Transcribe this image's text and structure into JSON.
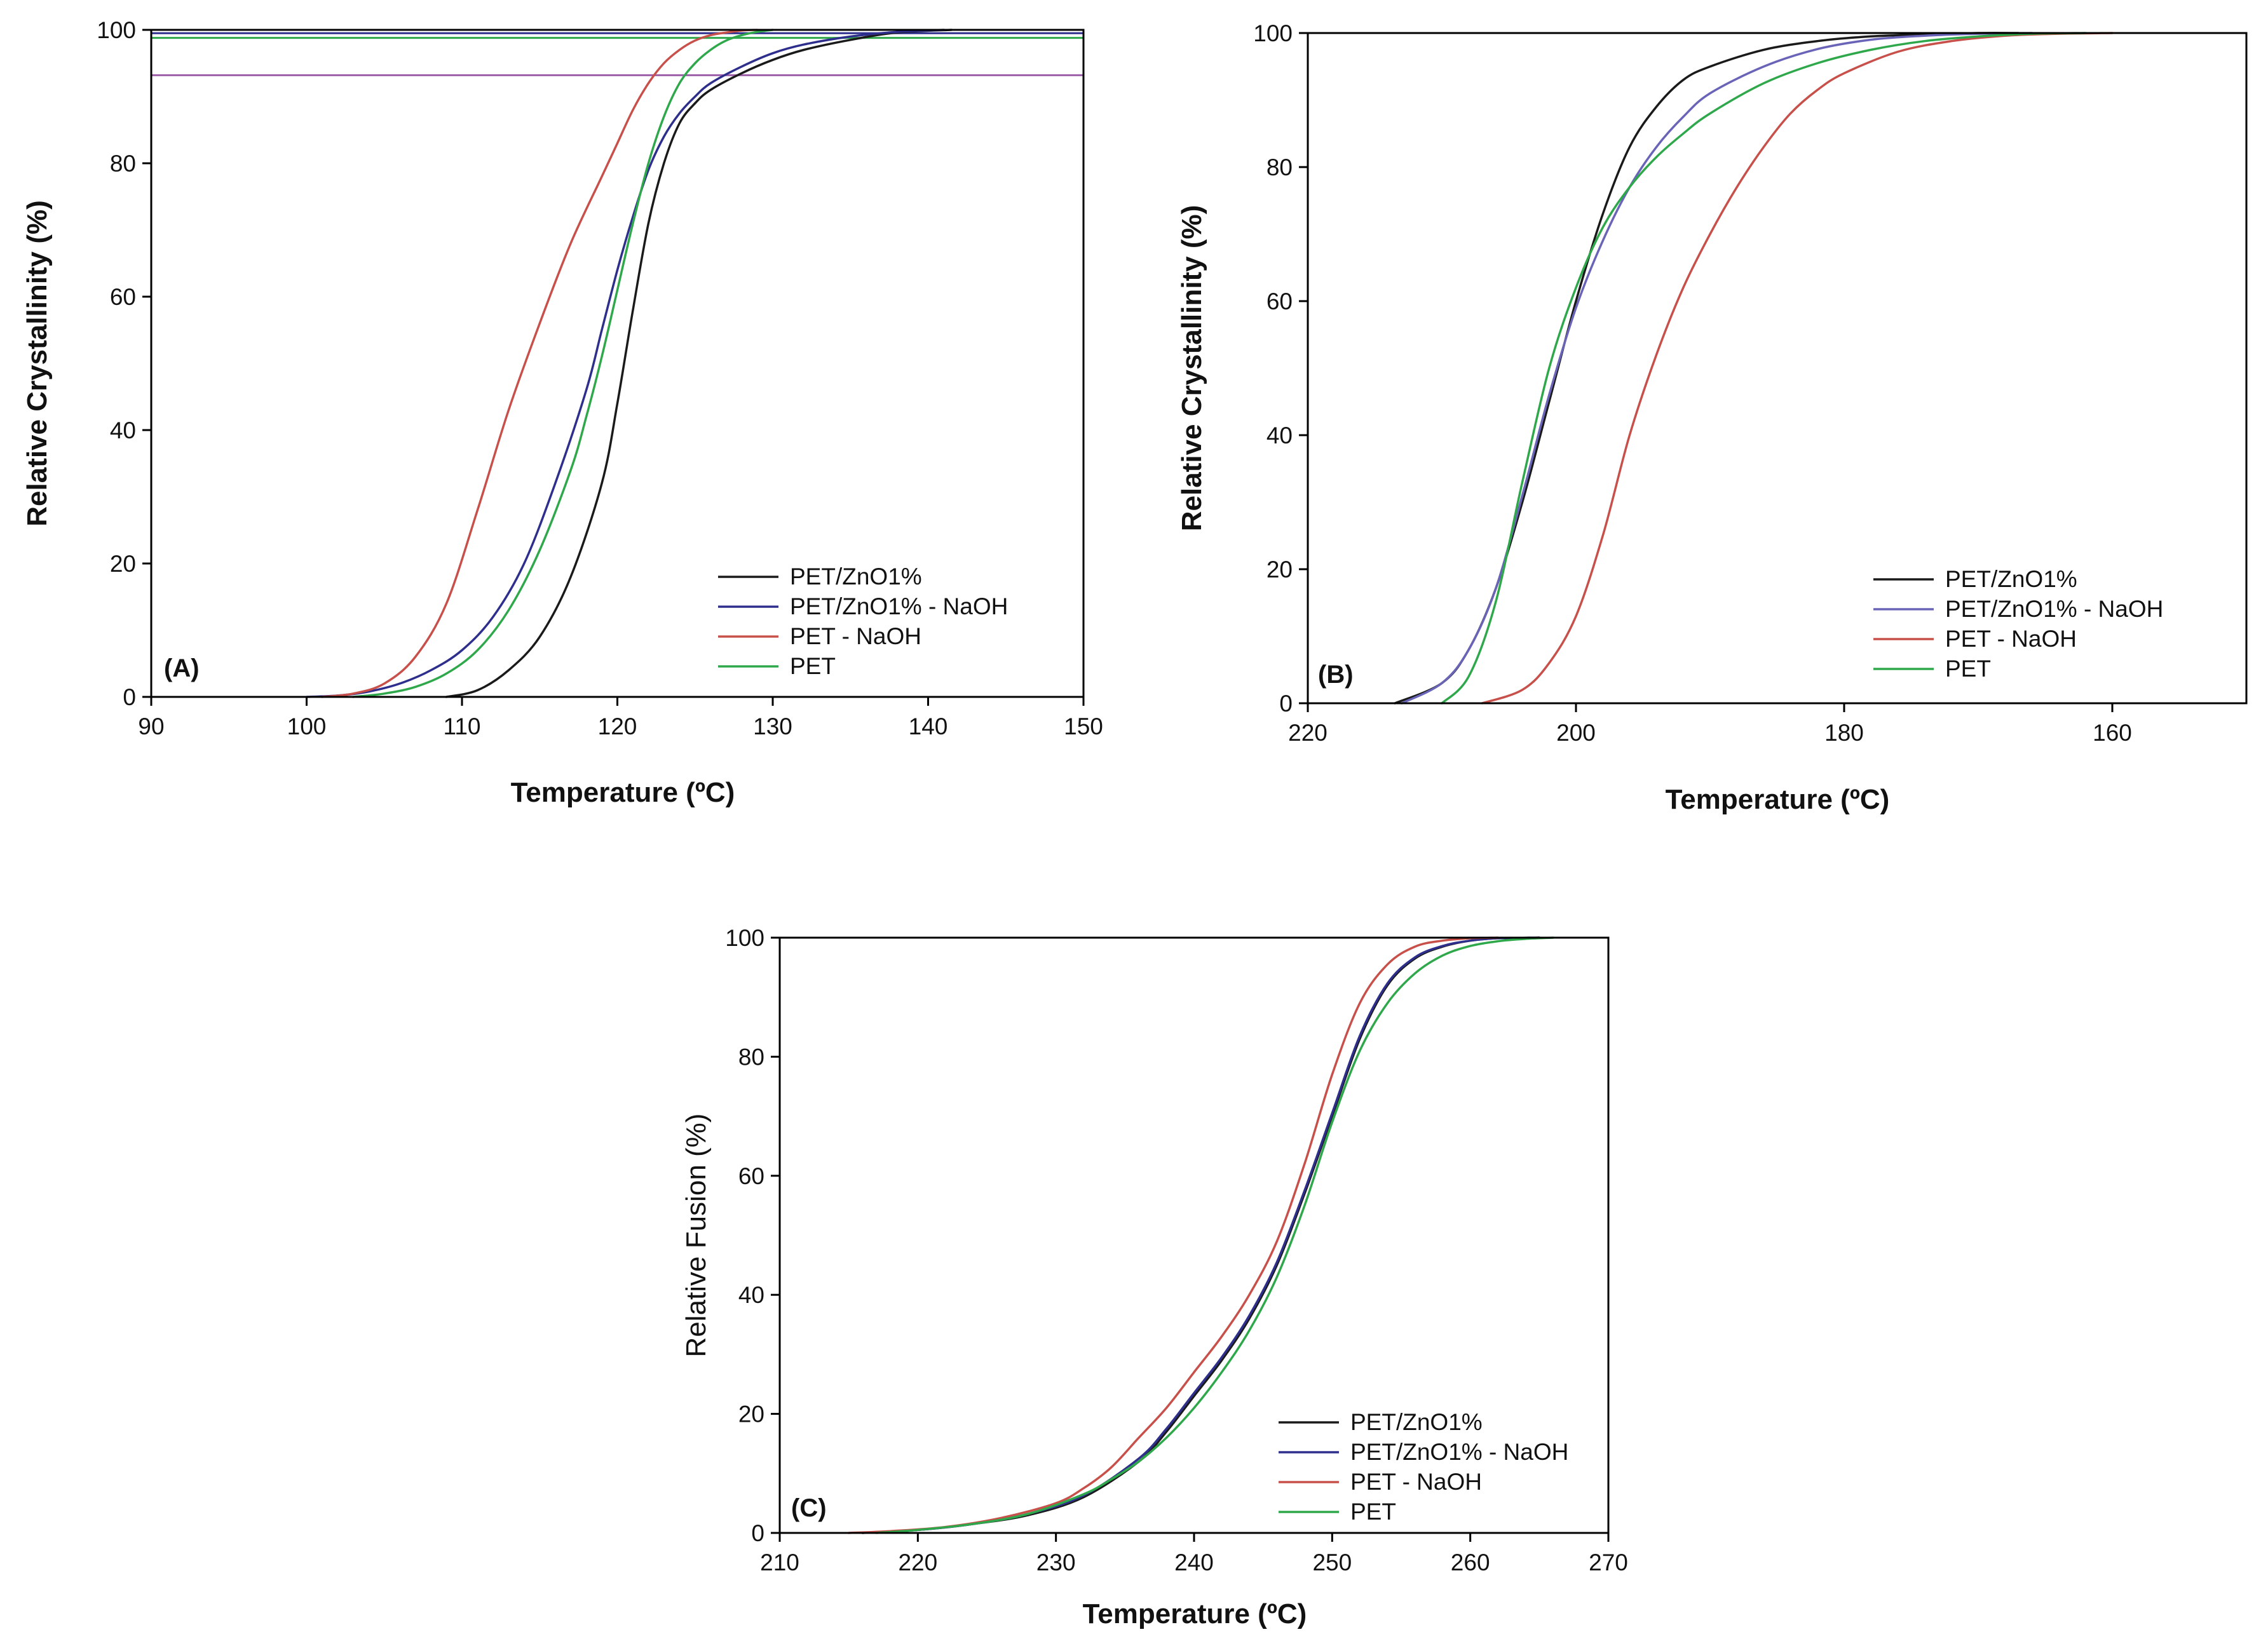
{
  "chart_data": [
    {
      "type": "line",
      "panel_label": "(A)",
      "xlabel": "Temperature (ºC)",
      "ylabel": "Relative Crystallinity (%)",
      "xlim": [
        90,
        150
      ],
      "ylim": [
        0,
        100
      ],
      "xticks": [
        90,
        100,
        110,
        120,
        130,
        140,
        150
      ],
      "yticks": [
        0,
        20,
        40,
        60,
        80,
        100
      ],
      "legend_position": "bottom-right",
      "reference_lines": [
        {
          "y": 99.5,
          "color": "#2e2e8c"
        },
        {
          "y": 98.8,
          "color": "#2ea84a"
        },
        {
          "y": 93.2,
          "color": "#9c5fa8"
        }
      ],
      "series": [
        {
          "name": "PET/ZnO1%",
          "color": "#1a1a1a",
          "x": [
            109,
            111,
            113,
            115,
            117,
            119,
            120,
            121,
            122,
            123,
            124,
            125,
            126,
            128,
            130,
            132,
            135,
            138,
            141.5
          ],
          "y": [
            0,
            1,
            4,
            9,
            18,
            32,
            44,
            58,
            71,
            80,
            86,
            89,
            91,
            93.5,
            95.5,
            97,
            98.5,
            99.6,
            100
          ]
        },
        {
          "name": "PET/ZnO1% - NaOH",
          "color": "#2e2e8c",
          "x": [
            100,
            102,
            104,
            106,
            108,
            110,
            112,
            114,
            116,
            118,
            119,
            120,
            121,
            122,
            123,
            124,
            125,
            126,
            128,
            130,
            132,
            135,
            138,
            141
          ],
          "y": [
            0,
            0.2,
            0.8,
            2,
            4,
            7,
            12,
            20,
            32,
            46,
            55,
            64,
            72,
            79,
            84,
            87.5,
            90,
            92,
            94.5,
            96.5,
            97.8,
            99,
            99.7,
            100
          ]
        },
        {
          "name": "PET - NaOH",
          "color": "#c8504a",
          "x": [
            101,
            103,
            105,
            107,
            109,
            111,
            113,
            115,
            117,
            119,
            120,
            121,
            122,
            123,
            124,
            125,
            126,
            127,
            128,
            129
          ],
          "y": [
            0,
            0.5,
            2,
            6,
            14,
            28,
            43,
            56,
            68,
            78,
            83,
            88,
            92,
            95,
            97,
            98.4,
            99.2,
            99.6,
            99.9,
            100
          ]
        },
        {
          "name": "PET",
          "color": "#2ea84a",
          "x": [
            103,
            105,
            107,
            109,
            111,
            113,
            115,
            117,
            118,
            119,
            120,
            121,
            122,
            123,
            124,
            125,
            126,
            127,
            128,
            129,
            130
          ],
          "y": [
            0,
            0.5,
            1.5,
            3.5,
            7,
            13,
            22,
            34,
            42,
            51,
            61,
            71,
            80,
            87,
            92,
            95,
            97,
            98.4,
            99.2,
            99.7,
            100
          ]
        }
      ]
    },
    {
      "type": "line",
      "panel_label": "(B)",
      "xlabel": "Temperature (ºC)",
      "ylabel": "Relative Crystallinity (%)",
      "xlim": [
        220,
        150
      ],
      "ylim": [
        0,
        100
      ],
      "x_axis_reversed": true,
      "xticks": [
        220,
        200,
        180,
        160
      ],
      "yticks": [
        0,
        20,
        40,
        60,
        80,
        100
      ],
      "legend_position": "bottom-right",
      "series": [
        {
          "name": "PET/ZnO1%",
          "color": "#1a1a1a",
          "x": [
            213.5,
            210,
            208,
            206,
            204,
            202,
            200,
            198,
            196,
            194,
            192,
            190,
            186,
            182,
            178,
            174,
            170,
            167
          ],
          "y": [
            0,
            3,
            8,
            17,
            30,
            45,
            60,
            73,
            83,
            89,
            93,
            95,
            97.5,
            98.8,
            99.5,
            99.8,
            100,
            100
          ]
        },
        {
          "name": "PET/ZnO1% - NaOH",
          "color": "#6a64b8",
          "x": [
            213,
            210,
            208,
            206,
            204,
            202,
            200,
            198,
            196,
            194,
            192,
            190,
            186,
            182,
            178,
            174,
            170,
            166
          ],
          "y": [
            0,
            3,
            8,
            17,
            31,
            46,
            59,
            69,
            77,
            83,
            87.5,
            91,
            95,
            97.6,
            99,
            99.6,
            99.9,
            100
          ]
        },
        {
          "name": "PET - NaOH",
          "color": "#c8504a",
          "x": [
            207,
            204,
            202,
            200,
            198,
            196,
            194,
            192,
            190,
            188,
            186,
            184,
            182,
            180,
            176,
            172,
            168,
            164,
            160
          ],
          "y": [
            0,
            2,
            6,
            13,
            25,
            40,
            52,
            62,
            70,
            77,
            83,
            88,
            91.5,
            94,
            97.2,
            98.8,
            99.6,
            99.9,
            100
          ]
        },
        {
          "name": "PET",
          "color": "#2ea84a",
          "x": [
            210,
            208,
            206,
            204,
            202,
            200,
            198,
            196,
            194,
            192,
            190,
            186,
            182,
            178,
            174,
            170,
            166,
            162
          ],
          "y": [
            0,
            4,
            15,
            33,
            50,
            62,
            71,
            77,
            81.5,
            85,
            88,
            92.5,
            95.5,
            97.5,
            98.8,
            99.5,
            99.9,
            100
          ]
        }
      ]
    },
    {
      "type": "line",
      "panel_label": "(C)",
      "xlabel": "Temperature (ºC)",
      "ylabel": "Relative Fusion (%)",
      "xlim": [
        210,
        270
      ],
      "ylim": [
        0,
        100
      ],
      "xticks": [
        210,
        220,
        230,
        240,
        250,
        260,
        270
      ],
      "yticks": [
        0,
        20,
        40,
        60,
        80,
        100
      ],
      "legend_position": "bottom-right",
      "series": [
        {
          "name": "PET/ZnO1%",
          "color": "#1a1a1a",
          "x": [
            216,
            220,
            224,
            228,
            232,
            236,
            238,
            240,
            242,
            244,
            246,
            248,
            250,
            252,
            254,
            256,
            258,
            260,
            262,
            265
          ],
          "y": [
            0,
            0.5,
            1.5,
            3,
            6,
            12,
            17,
            23,
            29,
            36,
            45,
            57,
            70,
            83,
            92,
            96.5,
            98.5,
            99.5,
            99.9,
            100
          ]
        },
        {
          "name": "PET/ZnO1% - NaOH",
          "color": "#2e2e8c",
          "x": [
            216,
            220,
            224,
            228,
            232,
            236,
            238,
            240,
            242,
            244,
            246,
            248,
            250,
            252,
            254,
            256,
            258,
            260,
            262,
            265
          ],
          "y": [
            0,
            0.5,
            1.5,
            3.2,
            6.3,
            12.5,
            17.5,
            23.5,
            29.5,
            36.5,
            45.5,
            57.5,
            70.5,
            83.5,
            92.3,
            96.7,
            98.6,
            99.5,
            99.9,
            100
          ]
        },
        {
          "name": "PET - NaOH",
          "color": "#c8504a",
          "x": [
            215,
            218,
            222,
            226,
            230,
            232,
            234,
            236,
            238,
            240,
            242,
            244,
            246,
            248,
            250,
            252,
            254,
            256,
            258,
            260,
            262
          ],
          "y": [
            0,
            0.3,
            1,
            2.5,
            5,
            7.5,
            11,
            16,
            21,
            27,
            33,
            40,
            49,
            62,
            77,
            89,
            95.5,
            98.5,
            99.5,
            99.9,
            100
          ]
        },
        {
          "name": "PET",
          "color": "#2ea84a",
          "x": [
            217,
            220,
            224,
            228,
            232,
            234,
            236,
            238,
            240,
            242,
            244,
            246,
            248,
            250,
            252,
            254,
            256,
            258,
            260,
            262,
            264,
            266
          ],
          "y": [
            0,
            0.5,
            1.5,
            3.2,
            6.5,
            9,
            12,
            16,
            21,
            27,
            34,
            43,
            55,
            69,
            81,
            89,
            94,
            97,
            98.6,
            99.4,
            99.8,
            100
          ]
        }
      ]
    }
  ]
}
